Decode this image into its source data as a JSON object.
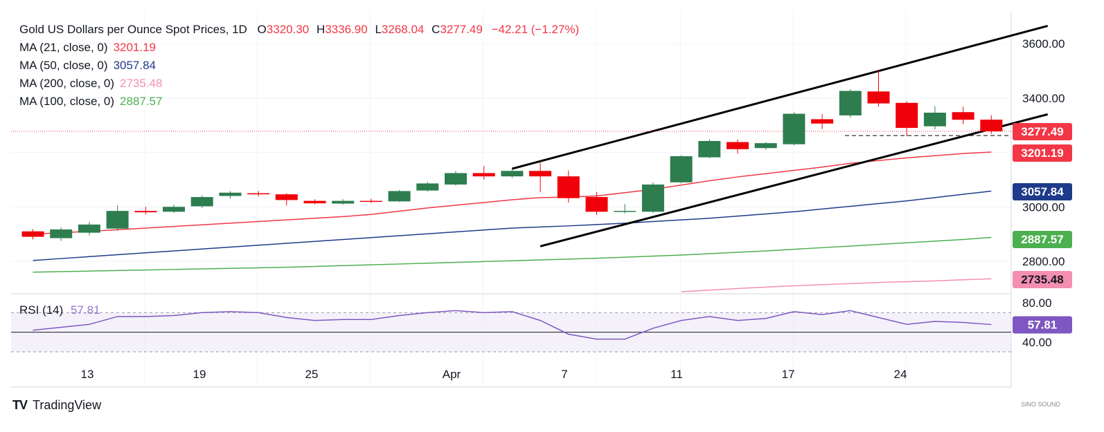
{
  "header": {
    "symbol": "Gold US Dollars per Ounce Spot Prices, 1D",
    "open_label": "O",
    "open": "3320.30",
    "high_label": "H",
    "high": "3336.90",
    "low_label": "L",
    "low": "3268.04",
    "close_label": "C",
    "close": "3277.49",
    "change": "−42.21 (−1.27%)"
  },
  "ma_legend": [
    {
      "label": "MA (21, close, 0)",
      "value": "3201.19",
      "color": "#f23645"
    },
    {
      "label": "MA (50, close, 0)",
      "value": "3057.84",
      "color": "#1e3a8a"
    },
    {
      "label": "MA (200, close, 0)",
      "value": "2735.48",
      "color": "#f48fb1"
    },
    {
      "label": "MA (100, close, 0)",
      "value": "2887.57",
      "color": "#4caf50"
    }
  ],
  "rsi_legend": {
    "label": "RSI (14)",
    "value": "57.81"
  },
  "footer": {
    "brand_mark": "TV",
    "brand": "TradingView"
  },
  "watermark": "SINO SOUND",
  "chart_data": [
    {
      "type": "candlestick",
      "title": "Gold US Dollars per Ounce Spot Prices, 1D",
      "ylim": [
        2750,
        3680
      ],
      "y_ticks": [
        "3600.00",
        "3400.00",
        "3200.00",
        "3000.00",
        "2800.00"
      ],
      "x_ticks": [
        "13",
        "19",
        "25",
        "Apr",
        "7",
        "11",
        "17",
        "24"
      ],
      "candles": [
        {
          "o": 2910,
          "h": 2918,
          "l": 2880,
          "c": 2890
        },
        {
          "o": 2885,
          "h": 2925,
          "l": 2875,
          "c": 2917
        },
        {
          "o": 2905,
          "h": 2945,
          "l": 2895,
          "c": 2935
        },
        {
          "o": 2920,
          "h": 3005,
          "l": 2912,
          "c": 2985
        },
        {
          "o": 2985,
          "h": 3000,
          "l": 2972,
          "c": 2980
        },
        {
          "o": 2982,
          "h": 3008,
          "l": 2978,
          "c": 3000
        },
        {
          "o": 3002,
          "h": 3042,
          "l": 2996,
          "c": 3036
        },
        {
          "o": 3040,
          "h": 3058,
          "l": 3030,
          "c": 3052
        },
        {
          "o": 3050,
          "h": 3058,
          "l": 3038,
          "c": 3046
        },
        {
          "o": 3046,
          "h": 3050,
          "l": 3005,
          "c": 3025
        },
        {
          "o": 3022,
          "h": 3028,
          "l": 3010,
          "c": 3013
        },
        {
          "o": 3012,
          "h": 3028,
          "l": 3008,
          "c": 3022
        },
        {
          "o": 3022,
          "h": 3030,
          "l": 3014,
          "c": 3020
        },
        {
          "o": 3020,
          "h": 3062,
          "l": 3018,
          "c": 3058
        },
        {
          "o": 3060,
          "h": 3092,
          "l": 3056,
          "c": 3086
        },
        {
          "o": 3082,
          "h": 3132,
          "l": 3078,
          "c": 3124
        },
        {
          "o": 3124,
          "h": 3150,
          "l": 3100,
          "c": 3112
        },
        {
          "o": 3112,
          "h": 3142,
          "l": 3106,
          "c": 3132
        },
        {
          "o": 3132,
          "h": 3167,
          "l": 3054,
          "c": 3112
        },
        {
          "o": 3112,
          "h": 3134,
          "l": 3016,
          "c": 3032
        },
        {
          "o": 3036,
          "h": 3055,
          "l": 2970,
          "c": 2982
        },
        {
          "o": 2983,
          "h": 3010,
          "l": 2976,
          "c": 2985
        },
        {
          "o": 2982,
          "h": 3090,
          "l": 2978,
          "c": 3082
        },
        {
          "o": 3090,
          "h": 3190,
          "l": 3086,
          "c": 3186
        },
        {
          "o": 3182,
          "h": 3248,
          "l": 3178,
          "c": 3242
        },
        {
          "o": 3238,
          "h": 3248,
          "l": 3196,
          "c": 3212
        },
        {
          "o": 3216,
          "h": 3238,
          "l": 3210,
          "c": 3234
        },
        {
          "o": 3230,
          "h": 3348,
          "l": 3226,
          "c": 3342
        },
        {
          "o": 3322,
          "h": 3340,
          "l": 3286,
          "c": 3306
        },
        {
          "o": 3336,
          "h": 3432,
          "l": 3328,
          "c": 3426
        },
        {
          "o": 3424,
          "h": 3502,
          "l": 3368,
          "c": 3380
        },
        {
          "o": 3382,
          "h": 3388,
          "l": 3260,
          "c": 3290
        },
        {
          "o": 3296,
          "h": 3370,
          "l": 3284,
          "c": 3346
        },
        {
          "o": 3348,
          "h": 3368,
          "l": 3304,
          "c": 3320
        },
        {
          "o": 3320.3,
          "h": 3336.9,
          "l": 3268.04,
          "c": 3277.49
        }
      ],
      "ma21": [
        2900,
        2905,
        2910,
        2916,
        2922,
        2928,
        2934,
        2940,
        2946,
        2952,
        2958,
        2964,
        2972,
        2984,
        2996,
        3006,
        3016,
        3026,
        3034,
        3036,
        3040,
        3052,
        3064,
        3080,
        3096,
        3110,
        3122,
        3134,
        3146,
        3160,
        3170,
        3180,
        3188,
        3196,
        3201.19
      ],
      "ma50": [
        2803,
        2810,
        2817,
        2824,
        2831,
        2838,
        2845,
        2852,
        2859,
        2866,
        2873,
        2880,
        2887,
        2894,
        2901,
        2908,
        2915,
        2922,
        2926,
        2930,
        2935,
        2940,
        2946,
        2952,
        2958,
        2966,
        2974,
        2982,
        2992,
        3002,
        3012,
        3022,
        3034,
        3046,
        3057.84
      ],
      "ma100": [
        2760,
        2762,
        2764,
        2766,
        2768,
        2770,
        2772,
        2774,
        2776,
        2778,
        2781,
        2784,
        2787,
        2790,
        2793,
        2796,
        2799,
        2802,
        2805,
        2808,
        2811,
        2815,
        2819,
        2823,
        2828,
        2833,
        2838,
        2844,
        2850,
        2856,
        2862,
        2868,
        2874,
        2880,
        2887.57
      ],
      "ma200": [
        null,
        null,
        null,
        null,
        null,
        null,
        null,
        null,
        null,
        null,
        null,
        null,
        null,
        null,
        null,
        null,
        null,
        null,
        null,
        null,
        null,
        null,
        2680,
        2688,
        2694,
        2700,
        2705,
        2710,
        2714,
        2718,
        2722,
        2725,
        2728,
        2732,
        2735.48
      ],
      "price_tags": [
        {
          "value": "3277.49",
          "color": "#f23645"
        },
        {
          "value": "3201.19",
          "color": "#f23645"
        },
        {
          "value": "3057.84",
          "color": "#1e3a8a"
        },
        {
          "value": "2887.57",
          "color": "#4caf50"
        },
        {
          "value": "2735.48",
          "color": "#f48fb1"
        }
      ],
      "channel": {
        "upper": {
          "from": {
            "i": 17,
            "y": 3140
          },
          "to": {
            "i": 36,
            "y": 3665
          }
        },
        "lower": {
          "from": {
            "i": 18,
            "y": 2855
          },
          "to": {
            "i": 36,
            "y": 3340
          }
        }
      },
      "colors": {
        "up": "#2e7d4f",
        "down": "#f0000a"
      }
    },
    {
      "type": "line",
      "title": "RSI (14)",
      "ylim": [
        30,
        85
      ],
      "y_ticks": [
        "80.00",
        "40.00"
      ],
      "bands": {
        "upper": 70,
        "lower": 30,
        "mid": 50
      },
      "values": [
        52,
        55,
        58,
        66,
        66,
        67,
        70,
        71,
        70,
        65,
        62,
        63,
        63,
        67,
        70,
        72,
        70,
        71,
        62,
        48,
        43,
        43,
        54,
        62,
        66,
        62,
        64,
        71,
        68,
        72,
        65,
        58,
        61,
        60,
        57.81
      ]
    }
  ]
}
